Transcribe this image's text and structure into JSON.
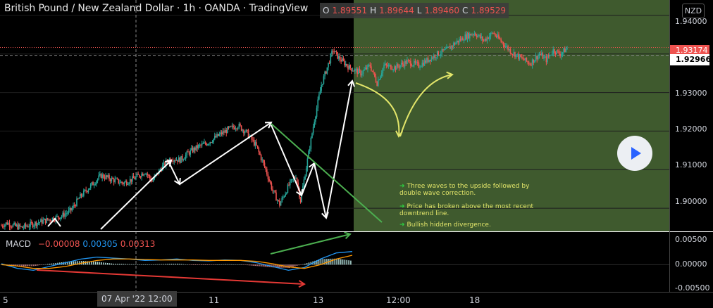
{
  "header": {
    "title": "British Pound / New Zealand Dollar · 1h · OANDA · TradingView",
    "ohlc": [
      {
        "k": "O",
        "v": "1.89551"
      },
      {
        "k": "H",
        "v": "1.89644"
      },
      {
        "k": "L",
        "v": "1.89460"
      },
      {
        "k": "C",
        "v": "1.89529"
      }
    ],
    "currency": "NZD"
  },
  "annotations": [
    "Three waves to the upside followed by double wave correction.",
    "Price has broken above the most recent downtrend line.",
    "Bullish hidden divergence."
  ],
  "macd": {
    "label": "MACD",
    "values": [
      "−0.00008",
      "0.00305",
      "0.00313"
    ]
  },
  "colors": {
    "up": "#26a69a",
    "down": "#ef5350",
    "highlight_zone": "#3f5a2e",
    "annotation_text": "#e3e66a",
    "arrow_white": "#ffffff",
    "arrow_yellow": "#e3e66a",
    "trendline_green": "#4caf50",
    "divergence_red": "#e53935"
  },
  "chart_data": [
    {
      "type": "candlestick",
      "title": "British Pound / New Zealand Dollar · 1h · OANDA · TradingView",
      "ylim": [
        1.884,
        1.944
      ],
      "y_ticks": [
        "1.94000",
        "1.93000",
        "1.92000",
        "1.91000",
        "1.90000",
        "1.89000"
      ],
      "x_ticks": [
        "5",
        "07 Apr '22  12:00",
        "11",
        "13",
        "12:00",
        "18"
      ],
      "price_tags": [
        "1.93174",
        "1.92966"
      ],
      "close_path": [
        [
          0,
          1.8855
        ],
        [
          5,
          1.8862
        ],
        [
          10,
          1.8855
        ],
        [
          18,
          1.885
        ],
        [
          28,
          1.886
        ],
        [
          40,
          1.887
        ],
        [
          52,
          1.888
        ],
        [
          60,
          1.8895
        ],
        [
          68,
          1.893
        ],
        [
          76,
          1.8955
        ],
        [
          86,
          1.8985
        ],
        [
          95,
          1.8975
        ],
        [
          105,
          1.8965
        ],
        [
          115,
          1.8978
        ],
        [
          124,
          1.8995
        ],
        [
          130,
          1.897
        ],
        [
          138,
          1.9005
        ],
        [
          146,
          1.903
        ],
        [
          154,
          1.9025
        ],
        [
          162,
          1.9045
        ],
        [
          170,
          1.906
        ],
        [
          178,
          1.907
        ],
        [
          188,
          1.909
        ],
        [
          196,
          1.9105
        ],
        [
          204,
          1.9115
        ],
        [
          212,
          1.9095
        ],
        [
          220,
          1.906
        ],
        [
          228,
          1.9
        ],
        [
          234,
          1.8945
        ],
        [
          240,
          1.891
        ],
        [
          248,
          1.896
        ],
        [
          254,
          1.8985
        ],
        [
          258,
          1.892
        ],
        [
          264,
          1.9025
        ],
        [
          270,
          1.913
        ],
        [
          276,
          1.922
        ],
        [
          281,
          1.9265
        ],
        [
          286,
          1.931
        ],
        [
          291,
          1.929
        ],
        [
          300,
          1.9265
        ],
        [
          310,
          1.925
        ],
        [
          318,
          1.927
        ],
        [
          324,
          1.9225
        ],
        [
          330,
          1.927
        ],
        [
          340,
          1.9265
        ],
        [
          350,
          1.928
        ],
        [
          360,
          1.927
        ],
        [
          368,
          1.9285
        ],
        [
          376,
          1.93
        ],
        [
          384,
          1.931
        ],
        [
          392,
          1.933
        ],
        [
          400,
          1.9345
        ],
        [
          408,
          1.9355
        ],
        [
          416,
          1.9335
        ],
        [
          424,
          1.9355
        ],
        [
          432,
          1.933
        ],
        [
          440,
          1.9305
        ],
        [
          448,
          1.929
        ],
        [
          456,
          1.9275
        ],
        [
          464,
          1.93
        ],
        [
          470,
          1.9285
        ],
        [
          476,
          1.931
        ],
        [
          482,
          1.93
        ],
        [
          488,
          1.9315
        ]
      ]
    },
    {
      "type": "macd",
      "title": "MACD",
      "ylim": [
        -0.0055,
        0.0065
      ],
      "y_ticks": [
        "0.00500",
        "0.00000",
        "-0.00500"
      ],
      "series": [
        {
          "name": "MACD",
          "values": [
            0.0002,
            -0.0008,
            -0.0012,
            -0.0004,
            0.0004,
            0.0012,
            0.0016,
            0.0014,
            0.0012,
            0.0009,
            0.001,
            0.0012,
            0.0009,
            0.0008,
            0.001,
            0.0009,
            0.0004,
            -0.0004,
            -0.0012,
            -0.0006,
            0.0012,
            0.0025,
            0.0028
          ]
        },
        {
          "name": "Signal",
          "values": [
            0.0,
            -0.0003,
            -0.0008,
            -0.0008,
            -0.0004,
            0.0003,
            0.0009,
            0.0012,
            0.0012,
            0.0011,
            0.001,
            0.001,
            0.001,
            0.0009,
            0.0009,
            0.0009,
            0.0007,
            0.0002,
            -0.0005,
            -0.0008,
            0.0,
            0.0012,
            0.002
          ]
        }
      ],
      "histogram": [
        0.0002,
        -0.0004,
        -0.0003,
        0.0002,
        0.0006,
        0.0008,
        0.0006,
        0.0002,
        0.0001,
        0.0,
        0.0001,
        0.0002,
        -0.0001,
        -0.0001,
        0.0001,
        0.0,
        -0.0003,
        -0.0006,
        -0.0007,
        0.0002,
        0.0012,
        0.0013,
        0.0008
      ]
    }
  ]
}
